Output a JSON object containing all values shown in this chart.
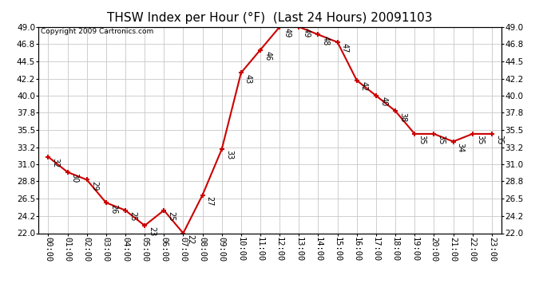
{
  "title": "THSW Index per Hour (°F)  (Last 24 Hours) 20091103",
  "copyright": "Copyright 2009 Cartronics.com",
  "hours": [
    "00:00",
    "01:00",
    "02:00",
    "03:00",
    "04:00",
    "05:00",
    "06:00",
    "07:00",
    "08:00",
    "09:00",
    "10:00",
    "11:00",
    "12:00",
    "13:00",
    "14:00",
    "15:00",
    "16:00",
    "17:00",
    "18:00",
    "19:00",
    "20:00",
    "21:00",
    "22:00",
    "23:00"
  ],
  "values": [
    32,
    30,
    29,
    26,
    25,
    23,
    25,
    22,
    27,
    33,
    43,
    46,
    49,
    49,
    48,
    47,
    42,
    40,
    38,
    35,
    35,
    34,
    35,
    35
  ],
  "line_color": "#cc0000",
  "marker_color": "#cc0000",
  "background_color": "#ffffff",
  "grid_color": "#c8c8c8",
  "ylim_min": 22.0,
  "ylim_max": 49.0,
  "yticks": [
    22.0,
    24.2,
    26.5,
    28.8,
    31.0,
    33.2,
    35.5,
    37.8,
    40.0,
    42.2,
    44.5,
    46.8,
    49.0
  ],
  "title_fontsize": 11,
  "label_fontsize": 7,
  "copyright_fontsize": 6.5,
  "tick_fontsize": 7.5
}
